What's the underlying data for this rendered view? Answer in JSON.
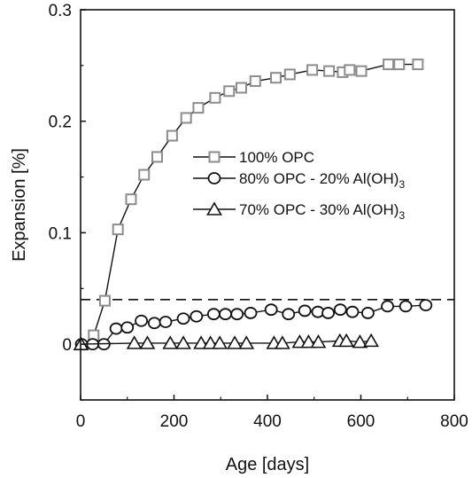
{
  "chart_data": {
    "type": "scatter",
    "xlabel": "Age [days]",
    "ylabel": "Expansion [%]",
    "xlim": [
      0,
      800
    ],
    "ylim": [
      -0.05,
      0.3
    ],
    "xticks": [
      "0",
      "200",
      "400",
      "600",
      "800"
    ],
    "xtick_values": [
      0,
      200,
      400,
      600,
      800
    ],
    "yticks": [
      "0",
      "0.1",
      "0.2",
      "0.3"
    ],
    "ytick_values": [
      0,
      0.1,
      0.2,
      0.3
    ],
    "legend_position": "center-right",
    "grid": false,
    "reference_line": {
      "y": 0.04,
      "style": "dashed"
    },
    "series": [
      {
        "name": "100% OPC",
        "marker": "square",
        "color": "#8c8c8c",
        "line_color": "#111111",
        "x": [
          28,
          52,
          80,
          108,
          136,
          164,
          196,
          226,
          252,
          288,
          318,
          344,
          374,
          418,
          448,
          496,
          532,
          561,
          576,
          601,
          659,
          682,
          722
        ],
        "y": [
          0.008,
          0.039,
          0.103,
          0.13,
          0.152,
          0.168,
          0.187,
          0.203,
          0.212,
          0.221,
          0.227,
          0.23,
          0.236,
          0.239,
          0.242,
          0.246,
          0.245,
          0.244,
          0.246,
          0.245,
          0.251,
          0.251,
          0.251
        ]
      },
      {
        "name": "80% OPC - 20% Al(OH)3",
        "legend_main": "80% OPC - 20% Al(OH)",
        "legend_sub": "3",
        "marker": "circle",
        "color": "#111111",
        "line_color": "#111111",
        "x": [
          2,
          26,
          50,
          76,
          100,
          130,
          158,
          182,
          220,
          248,
          285,
          310,
          335,
          364,
          408,
          445,
          480,
          508,
          530,
          556,
          582,
          615,
          657,
          696,
          739
        ],
        "y": [
          0.0,
          0.0,
          0.0,
          0.014,
          0.015,
          0.021,
          0.019,
          0.02,
          0.023,
          0.025,
          0.027,
          0.027,
          0.027,
          0.028,
          0.031,
          0.027,
          0.03,
          0.029,
          0.028,
          0.031,
          0.029,
          0.028,
          0.034,
          0.034,
          0.035
        ]
      },
      {
        "name": "70% OPC - 30% Al(OH)3",
        "legend_main": "70% OPC - 30% Al(OH)",
        "legend_sub": "3",
        "marker": "triangle",
        "color": "#111111",
        "line_color": "#111111",
        "x": [
          1,
          115,
          143,
          192,
          220,
          258,
          278,
          298,
          330,
          355,
          414,
          432,
          469,
          488,
          509,
          555,
          569,
          598,
          622
        ],
        "y": [
          0.0,
          0.001,
          0.001,
          0.001,
          0.001,
          0.001,
          0.001,
          0.001,
          0.001,
          0.001,
          0.001,
          0.001,
          0.002,
          0.002,
          0.002,
          0.003,
          0.003,
          0.002,
          0.003
        ]
      }
    ]
  }
}
